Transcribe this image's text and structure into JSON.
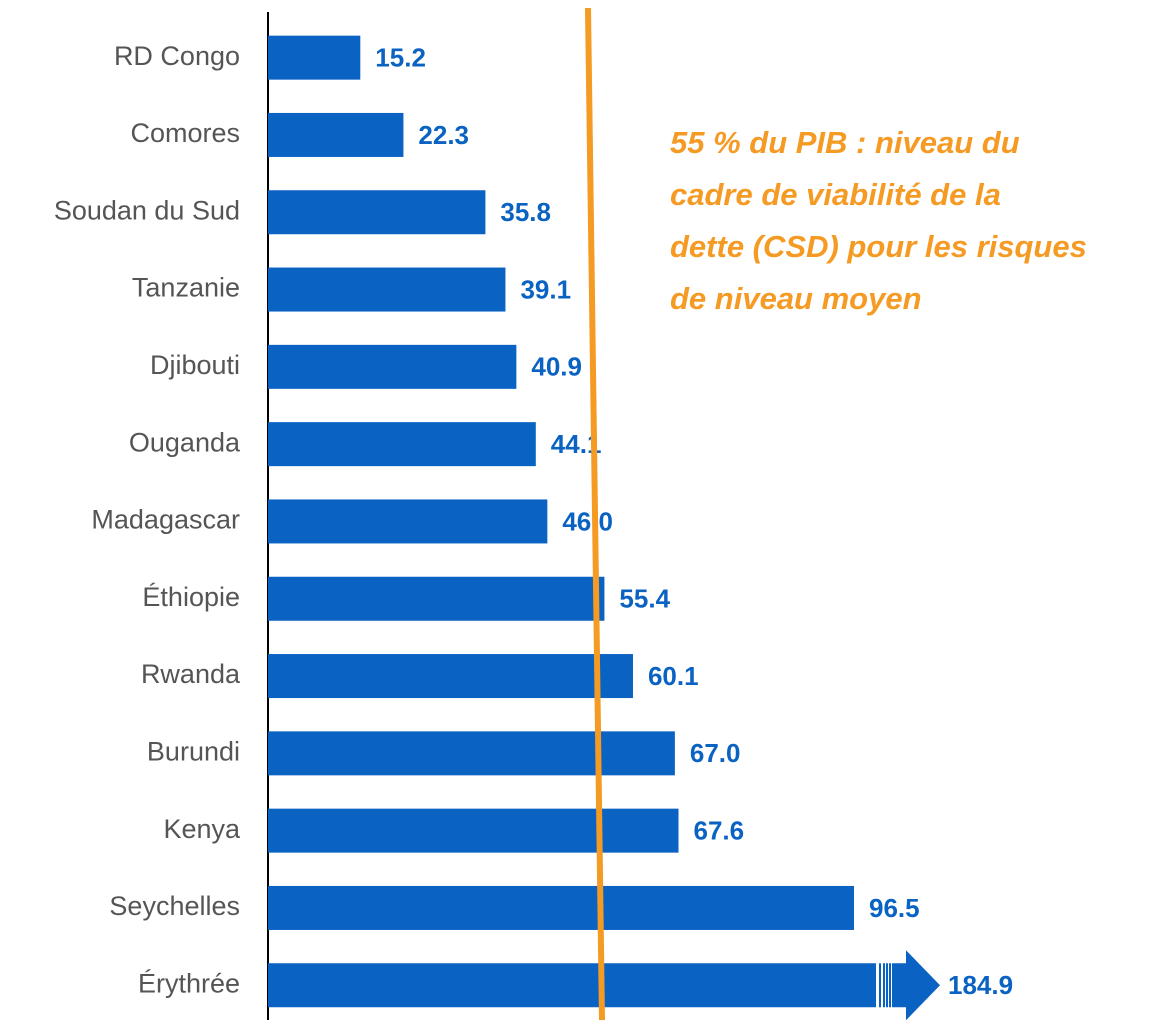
{
  "chart_data": {
    "type": "bar",
    "orientation": "horizontal",
    "categories": [
      "RD Congo",
      "Comores",
      "Soudan du Sud",
      "Tanzanie",
      "Djibouti",
      "Ouganda",
      "Madagascar",
      "Éthiopie",
      "Rwanda",
      "Burundi",
      "Kenya",
      "Seychelles",
      "Érythrée"
    ],
    "values": [
      15.2,
      22.3,
      35.8,
      39.1,
      40.9,
      44.1,
      46.0,
      55.4,
      60.1,
      67.0,
      67.6,
      96.5,
      184.9
    ],
    "value_labels": [
      "15.2",
      "22.3",
      "35.8",
      "39.1",
      "40.9",
      "44.1",
      "46.0",
      "55.4",
      "60.1",
      "67.0",
      "67.6",
      "96.5",
      "184.9"
    ],
    "color": "#0a62c2",
    "xlim": [
      0,
      110
    ],
    "reference_line": {
      "value": 55,
      "color": "#f59a23"
    },
    "annotation": [
      "55 % du PIB : niveau du",
      "cadre de viabilité de la",
      "dette (CSD) pour les risques",
      "de niveau moyen"
    ]
  }
}
